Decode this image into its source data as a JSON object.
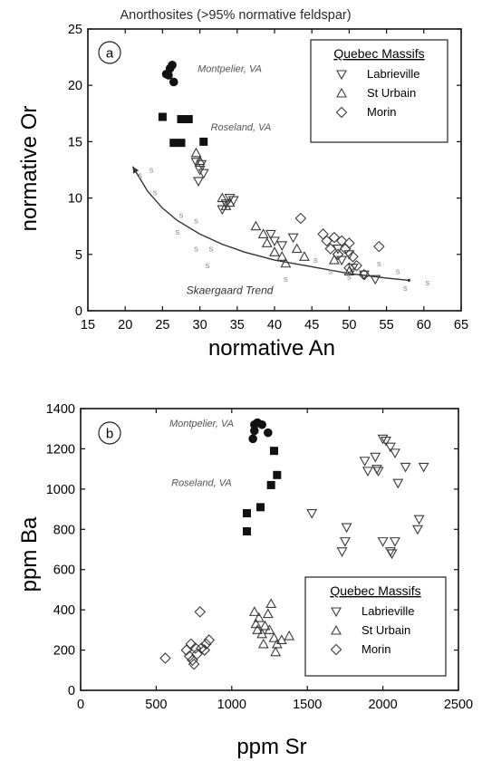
{
  "figure_title": "Anorthosites (>95% normative feldspar)",
  "chart_data": [
    {
      "type": "scatter",
      "panel_label": "a",
      "xlabel": "normative An",
      "ylabel": "normative Or",
      "xlim": [
        15,
        65
      ],
      "ylim": [
        0,
        25
      ],
      "xticks": [
        15,
        20,
        25,
        30,
        35,
        40,
        45,
        50,
        55,
        60,
        65
      ],
      "yticks": [
        0,
        5,
        10,
        15,
        20,
        25
      ],
      "grid": false,
      "legend_title": "Quebec Massifs",
      "legend_position": "top-right",
      "annotations": [
        {
          "text": "Montpelier, VA",
          "x": 34,
          "y": 21.2
        },
        {
          "text": "Roseland, VA",
          "x": 35.5,
          "y": 16.0
        },
        {
          "text": "Skaergaard Trend",
          "x": 34,
          "y": 1.5
        }
      ],
      "series": [
        {
          "name": "Montpelier, VA",
          "marker": "circle-filled",
          "legend": false,
          "points": [
            [
              25.5,
              21.0
            ],
            [
              26.0,
              21.5
            ],
            [
              26.3,
              21.8
            ],
            [
              25.8,
              20.9
            ],
            [
              26.5,
              20.3
            ]
          ]
        },
        {
          "name": "Roseland, VA",
          "marker": "square-filled",
          "legend": false,
          "points": [
            [
              25.0,
              17.2
            ],
            [
              27.5,
              17.0
            ],
            [
              28.5,
              17.0
            ],
            [
              26.5,
              14.9
            ],
            [
              27.5,
              14.9
            ],
            [
              30.5,
              15.0
            ]
          ]
        },
        {
          "name": "Labrieville",
          "marker": "triangle-down",
          "legend": true,
          "points": [
            [
              29.5,
              13.2
            ],
            [
              30.0,
              12.5
            ],
            [
              30.2,
              13.0
            ],
            [
              29.8,
              11.5
            ],
            [
              30.5,
              12.2
            ],
            [
              33.5,
              9.5
            ],
            [
              34.0,
              10.0
            ],
            [
              33.0,
              9.0
            ],
            [
              34.5,
              9.8
            ],
            [
              39.5,
              6.8
            ],
            [
              40.0,
              6.2
            ],
            [
              41.0,
              5.8
            ],
            [
              42.5,
              6.5
            ],
            [
              48.5,
              5.5
            ],
            [
              49.0,
              4.5
            ],
            [
              50.0,
              5.0
            ],
            [
              50.5,
              3.8
            ],
            [
              52.0,
              3.2
            ],
            [
              53.5,
              2.8
            ]
          ]
        },
        {
          "name": "St Urbain",
          "marker": "triangle-up",
          "legend": true,
          "points": [
            [
              29.5,
              14.0
            ],
            [
              30.0,
              13.3
            ],
            [
              33.0,
              10.0
            ],
            [
              33.5,
              9.3
            ],
            [
              34.0,
              9.6
            ],
            [
              37.5,
              7.5
            ],
            [
              38.5,
              6.8
            ],
            [
              39.0,
              6.0
            ],
            [
              40.0,
              5.2
            ],
            [
              41.0,
              4.8
            ],
            [
              41.5,
              4.2
            ],
            [
              43.0,
              5.5
            ],
            [
              44.0,
              4.8
            ],
            [
              48.0,
              4.5
            ],
            [
              50.0,
              3.5
            ]
          ]
        },
        {
          "name": "Morin",
          "marker": "diamond",
          "legend": true,
          "points": [
            [
              43.5,
              8.2
            ],
            [
              46.5,
              6.8
            ],
            [
              47.0,
              6.2
            ],
            [
              47.5,
              5.5
            ],
            [
              48.0,
              6.5
            ],
            [
              48.5,
              5.0
            ],
            [
              49.0,
              6.2
            ],
            [
              49.5,
              5.5
            ],
            [
              50.0,
              6.0
            ],
            [
              50.5,
              4.8
            ],
            [
              50.0,
              3.8
            ],
            [
              51.0,
              4.0
            ],
            [
              52.0,
              3.2
            ],
            [
              54.0,
              5.7
            ]
          ]
        },
        {
          "name": "Skaergaard",
          "marker": "s",
          "legend": false,
          "points": [
            [
              22.0,
              12.0
            ],
            [
              23.5,
              12.5
            ],
            [
              24.0,
              10.5
            ],
            [
              27.5,
              8.5
            ],
            [
              29.5,
              8.0
            ],
            [
              27.0,
              7.0
            ],
            [
              29.5,
              5.5
            ],
            [
              31.5,
              5.5
            ],
            [
              31.0,
              4.0
            ],
            [
              41.5,
              2.8
            ],
            [
              45.5,
              4.5
            ],
            [
              47.5,
              3.5
            ],
            [
              50.0,
              3.0
            ],
            [
              54.0,
              4.2
            ],
            [
              56.5,
              3.5
            ],
            [
              57.5,
              2.0
            ],
            [
              60.5,
              2.5
            ]
          ]
        }
      ],
      "trend_line": {
        "name": "Skaergaard Trend",
        "points": [
          [
            21.0,
            12.8
          ],
          [
            23.0,
            10.6
          ],
          [
            25.0,
            9.1
          ],
          [
            27.0,
            8.0
          ],
          [
            30.0,
            6.8
          ],
          [
            33.0,
            5.9
          ],
          [
            36.0,
            5.2
          ],
          [
            40.0,
            4.5
          ],
          [
            45.0,
            3.9
          ],
          [
            50.0,
            3.3
          ],
          [
            55.0,
            2.9
          ],
          [
            58.0,
            2.7
          ]
        ]
      }
    },
    {
      "type": "scatter",
      "panel_label": "b",
      "xlabel": "ppm Sr",
      "ylabel": "ppm Ba",
      "xlim": [
        0,
        2500
      ],
      "ylim": [
        0,
        1400
      ],
      "xticks": [
        0,
        500,
        1000,
        1500,
        2000,
        2500
      ],
      "yticks": [
        0,
        200,
        400,
        600,
        800,
        1000,
        1200,
        1400
      ],
      "grid": false,
      "legend_title": "Quebec Massifs",
      "legend_position": "bottom-right",
      "annotations": [
        {
          "text": "Montpelier, VA",
          "x": 800,
          "y": 1310
        },
        {
          "text": "Roseland, VA",
          "x": 800,
          "y": 1015
        }
      ],
      "series": [
        {
          "name": "Montpelier, VA",
          "marker": "circle-filled",
          "legend": false,
          "points": [
            [
              1150,
              1320
            ],
            [
              1170,
              1330
            ],
            [
              1200,
              1320
            ],
            [
              1140,
              1250
            ],
            [
              1240,
              1280
            ],
            [
              1150,
              1290
            ]
          ]
        },
        {
          "name": "Roseland, VA",
          "marker": "square-filled",
          "legend": false,
          "points": [
            [
              1100,
              880
            ],
            [
              1100,
              790
            ],
            [
              1190,
              910
            ],
            [
              1260,
              1020
            ],
            [
              1280,
              1190
            ],
            [
              1300,
              1070
            ]
          ]
        },
        {
          "name": "Labrieville",
          "marker": "triangle-down",
          "legend": true,
          "points": [
            [
              1530,
              880
            ],
            [
              1730,
              690
            ],
            [
              1750,
              740
            ],
            [
              1760,
              810
            ],
            [
              1880,
              1140
            ],
            [
              1900,
              1090
            ],
            [
              1950,
              1160
            ],
            [
              1960,
              1100
            ],
            [
              1970,
              1090
            ],
            [
              2000,
              1250
            ],
            [
              2000,
              740
            ],
            [
              2020,
              1240
            ],
            [
              2050,
              690
            ],
            [
              2050,
              1210
            ],
            [
              2060,
              680
            ],
            [
              2080,
              1180
            ],
            [
              2080,
              740
            ],
            [
              2100,
              1030
            ],
            [
              2150,
              1110
            ],
            [
              2230,
              800
            ],
            [
              2240,
              850
            ],
            [
              2270,
              1110
            ]
          ]
        },
        {
          "name": "St Urbain",
          "marker": "triangle-up",
          "legend": true,
          "points": [
            [
              1150,
              390
            ],
            [
              1160,
              330
            ],
            [
              1170,
              300
            ],
            [
              1180,
              360
            ],
            [
              1200,
              280
            ],
            [
              1220,
              320
            ],
            [
              1240,
              380
            ],
            [
              1250,
              300
            ],
            [
              1260,
              430
            ],
            [
              1280,
              260
            ],
            [
              1290,
              190
            ],
            [
              1300,
              230
            ],
            [
              1330,
              250
            ],
            [
              1380,
              270
            ],
            [
              1210,
              230
            ]
          ]
        },
        {
          "name": "Morin",
          "marker": "diamond",
          "legend": true,
          "points": [
            [
              560,
              160
            ],
            [
              700,
              200
            ],
            [
              720,
              170
            ],
            [
              740,
              150
            ],
            [
              750,
              130
            ],
            [
              760,
              210
            ],
            [
              770,
              180
            ],
            [
              790,
              390
            ],
            [
              800,
              210
            ],
            [
              820,
              200
            ],
            [
              830,
              230
            ],
            [
              850,
              250
            ],
            [
              730,
              230
            ]
          ]
        }
      ]
    }
  ]
}
